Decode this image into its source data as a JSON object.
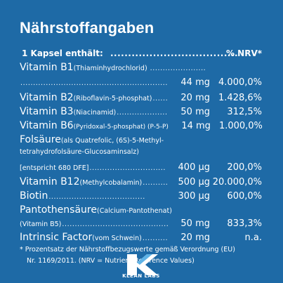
{
  "title": "Nährstoffangaben",
  "header": {
    "left": "1 Kapsel enthält:",
    "dots": "....................................",
    "right": "% NRV*"
  },
  "rows": [
    {
      "name": "Vitamin B1",
      "detail": " (Thiaminhydrochlorid)",
      "dots": "......................",
      "amount": "",
      "nrv": ""
    },
    {
      "name": "",
      "detail": "",
      "dots": "......................................................................",
      "amount": "44 mg",
      "nrv": "4.000,0%"
    },
    {
      "name": "Vitamin B2",
      "detail": " (Riboflavin-5-phosphat)",
      "dots": "..........",
      "amount": "20 mg",
      "nrv": "1.428,6%"
    },
    {
      "name": "Vitamin B3",
      "detail": " (Niacinamid)",
      "dots": "....................",
      "amount": "50 mg",
      "nrv": "312,5%"
    },
    {
      "name": "Vitamin B6",
      "detail": " (Pyridoxal-5-phosphat) (P-5-P)",
      "dots": "..",
      "amount": "14 mg",
      "nrv": "1.000,0%"
    },
    {
      "name": "Folsäure",
      "detail": " (als Quatrefolic, (6S)-5-Methyl-",
      "dots": "",
      "amount": "",
      "nrv": ""
    },
    {
      "name": "",
      "detail": "tetrahydrofolsäure-Glucosaminsalz)",
      "dots": "",
      "amount": "",
      "nrv": ""
    },
    {
      "name": "",
      "detail": "[entspricht 680 DFE]",
      "dots": "..............................",
      "amount": "400 µg",
      "nrv": "200,0%"
    },
    {
      "name": "Vitamin B12",
      "detail": " (Methylcobalamin)",
      "dots": "..............",
      "amount": "500 µg",
      "nrv": "20.000,0%"
    },
    {
      "name": "Biotin",
      "detail": "",
      "dots": "......................................",
      "amount": "300 µg",
      "nrv": "600,0%"
    },
    {
      "name": "Pantothensäure",
      "detail": " (Calcium-Pantothenat)",
      "dots": "",
      "amount": "",
      "nrv": ""
    },
    {
      "name": "",
      "detail": "(Vitamin B5)",
      "dots": "...........................................",
      "amount": "50 mg",
      "nrv": "833,3%"
    },
    {
      "name": "Intrinsic Factor",
      "detail": " (vom Schwein)",
      "dots": "..............",
      "amount": "20 mg",
      "nrv": "n.a."
    }
  ],
  "footnote1": "* Prozentsatz der Nährstoffbezugswerte gemäß Verordnung (EU)",
  "footnote2": "Nr. 1169/2011. (NRV = Nutrient Reference Values)",
  "logo": {
    "text": "KLEAN LABS",
    "icon": "k-logo-icon"
  }
}
